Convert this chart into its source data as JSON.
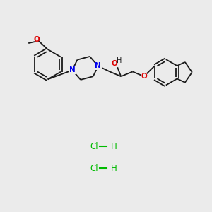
{
  "background_color": "#ebebeb",
  "bond_color": "#1a1a1a",
  "nitrogen_color": "#0000ee",
  "oxygen_color": "#dd0000",
  "hcl_color": "#00bb00",
  "figsize": [
    3.0,
    3.0
  ],
  "dpi": 100,
  "methoxy_o_label": "O",
  "oh_label": "H",
  "o_chain_label": "O",
  "n_label": "N",
  "hcl1_label": "Cl",
  "hcl2_label": "Cl",
  "h_label": "H"
}
